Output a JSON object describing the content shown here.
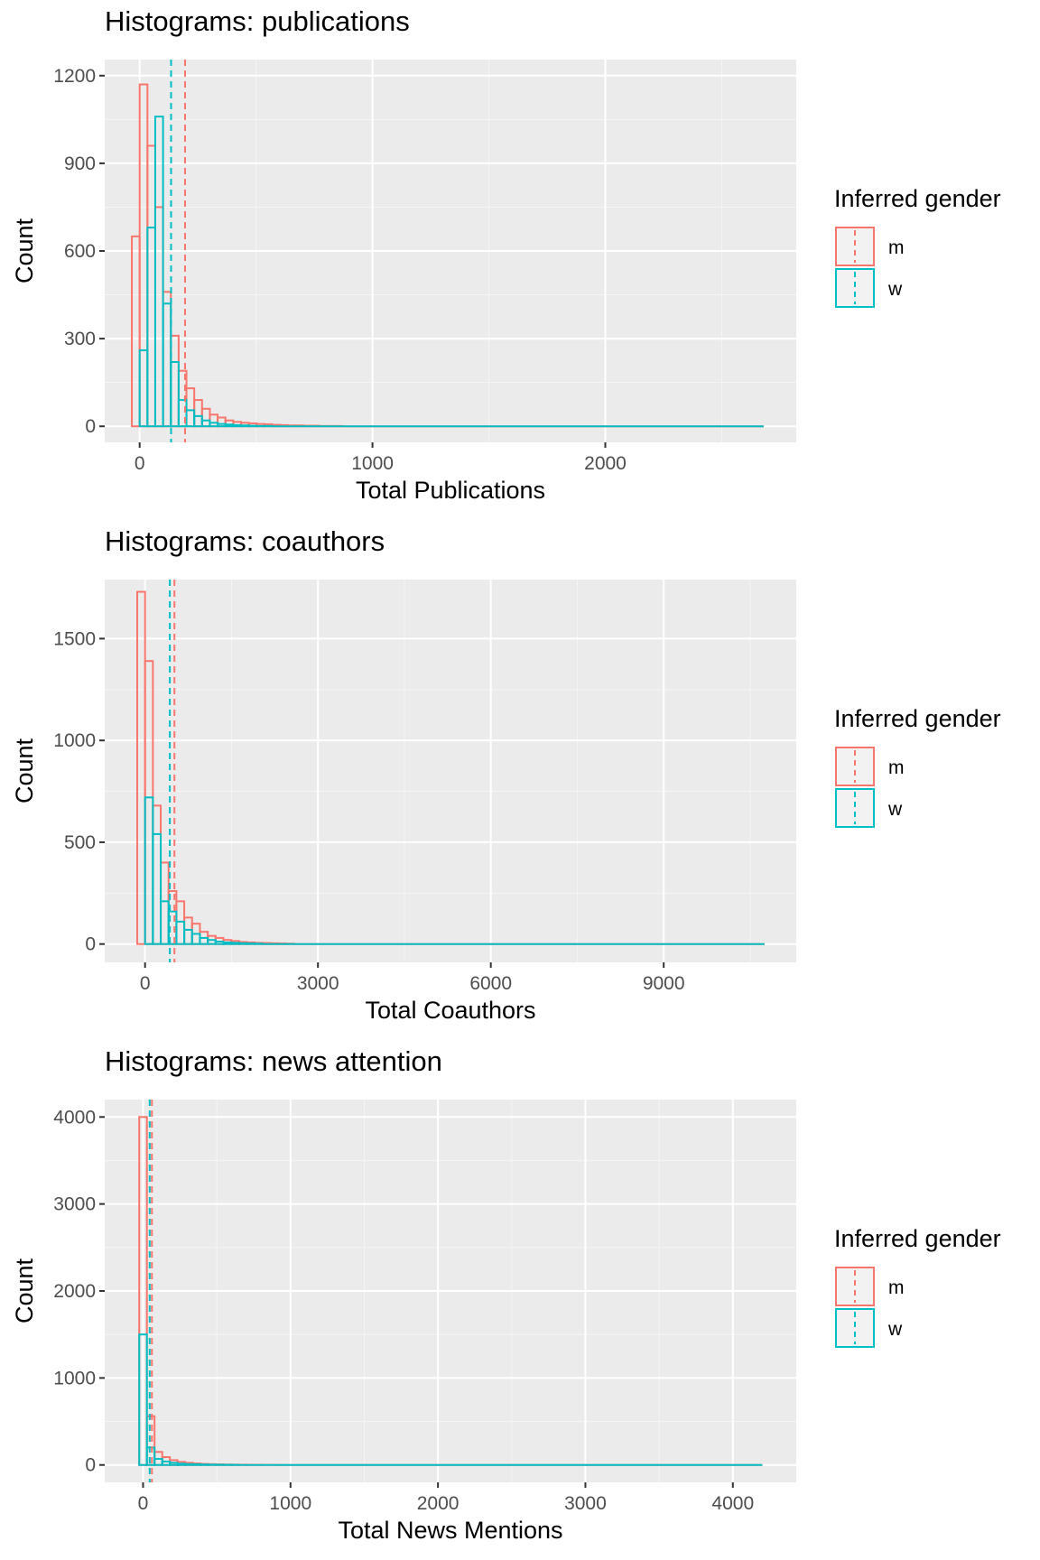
{
  "chart_data": [
    {
      "type": "bar",
      "title": "Histograms: publications",
      "xlabel": "Total Publications",
      "ylabel": "Count",
      "xlim": [
        -150,
        2820
      ],
      "ylim": [
        -55,
        1255
      ],
      "x_ticks": [
        0,
        1000,
        2000
      ],
      "x_tick_labels": [
        "0",
        "1000",
        "2000"
      ],
      "y_ticks": [
        0,
        300,
        600,
        900,
        1200
      ],
      "y_tick_labels": [
        "0",
        "300",
        "600",
        "900",
        "1200"
      ],
      "grid": true,
      "legend_position": "right",
      "legend_title": "Inferred gender",
      "bin_width": 33.5,
      "bin_start": -33.5,
      "range_end": 2680,
      "series": [
        {
          "name": "m",
          "color": "#F8766D",
          "mean": 195,
          "values": [
            650,
            1170,
            960,
            750,
            460,
            310,
            190,
            130,
            90,
            60,
            40,
            30,
            20,
            15,
            12,
            10,
            8,
            7,
            5,
            4,
            3,
            3,
            2,
            2,
            1,
            1,
            1
          ]
        },
        {
          "name": "w",
          "color": "#00BFC4",
          "mean": 135,
          "values": [
            0,
            260,
            680,
            1060,
            420,
            220,
            90,
            55,
            35,
            20,
            12,
            8,
            6,
            4,
            3,
            2,
            1,
            1
          ]
        }
      ]
    },
    {
      "type": "bar",
      "title": "Histograms: coauthors",
      "xlabel": "Total Coauthors",
      "ylabel": "Count",
      "xlim": [
        -700,
        11300
      ],
      "ylim": [
        -90,
        1790
      ],
      "x_ticks": [
        0,
        3000,
        6000,
        9000
      ],
      "x_tick_labels": [
        "0",
        "3000",
        "6000",
        "9000"
      ],
      "y_ticks": [
        0,
        500,
        1000,
        1500
      ],
      "y_tick_labels": [
        "0",
        "500",
        "1000",
        "1500"
      ],
      "grid": true,
      "legend_position": "right",
      "legend_title": "Inferred gender",
      "bin_width": 136,
      "bin_start": -136,
      "range_end": 10750,
      "series": [
        {
          "name": "m",
          "color": "#F8766D",
          "mean": 510,
          "values": [
            1730,
            1390,
            680,
            400,
            260,
            210,
            130,
            100,
            60,
            40,
            30,
            20,
            15,
            10,
            8,
            6,
            5,
            4,
            3,
            2
          ]
        },
        {
          "name": "w",
          "color": "#00BFC4",
          "mean": 430,
          "values": [
            0,
            720,
            540,
            210,
            160,
            110,
            70,
            50,
            30,
            20,
            12,
            8,
            6,
            4,
            3,
            2
          ]
        }
      ]
    },
    {
      "type": "bar",
      "title": "Histograms: news attention",
      "xlabel": "Total News Mentions",
      "ylabel": "Count",
      "xlim": [
        -260,
        4430
      ],
      "ylim": [
        -200,
        4200
      ],
      "x_ticks": [
        0,
        1000,
        2000,
        3000,
        4000
      ],
      "x_tick_labels": [
        "0",
        "1000",
        "2000",
        "3000",
        "4000"
      ],
      "y_ticks": [
        0,
        1000,
        2000,
        3000,
        4000
      ],
      "y_tick_labels": [
        "0",
        "1000",
        "2000",
        "3000",
        "4000"
      ],
      "grid": true,
      "legend_position": "right",
      "legend_title": "Inferred gender",
      "bin_width": 52,
      "bin_start": -26,
      "range_end": 4200,
      "series": [
        {
          "name": "m",
          "color": "#F8766D",
          "mean": 60,
          "values": [
            4000,
            560,
            150,
            90,
            55,
            35,
            25,
            18,
            12,
            9,
            7,
            5,
            4,
            3,
            2,
            2,
            1,
            1
          ]
        },
        {
          "name": "w",
          "color": "#00BFC4",
          "mean": 45,
          "values": [
            1500,
            200,
            70,
            40,
            25,
            15,
            10,
            8,
            5,
            4,
            3,
            2,
            1
          ]
        }
      ]
    }
  ]
}
